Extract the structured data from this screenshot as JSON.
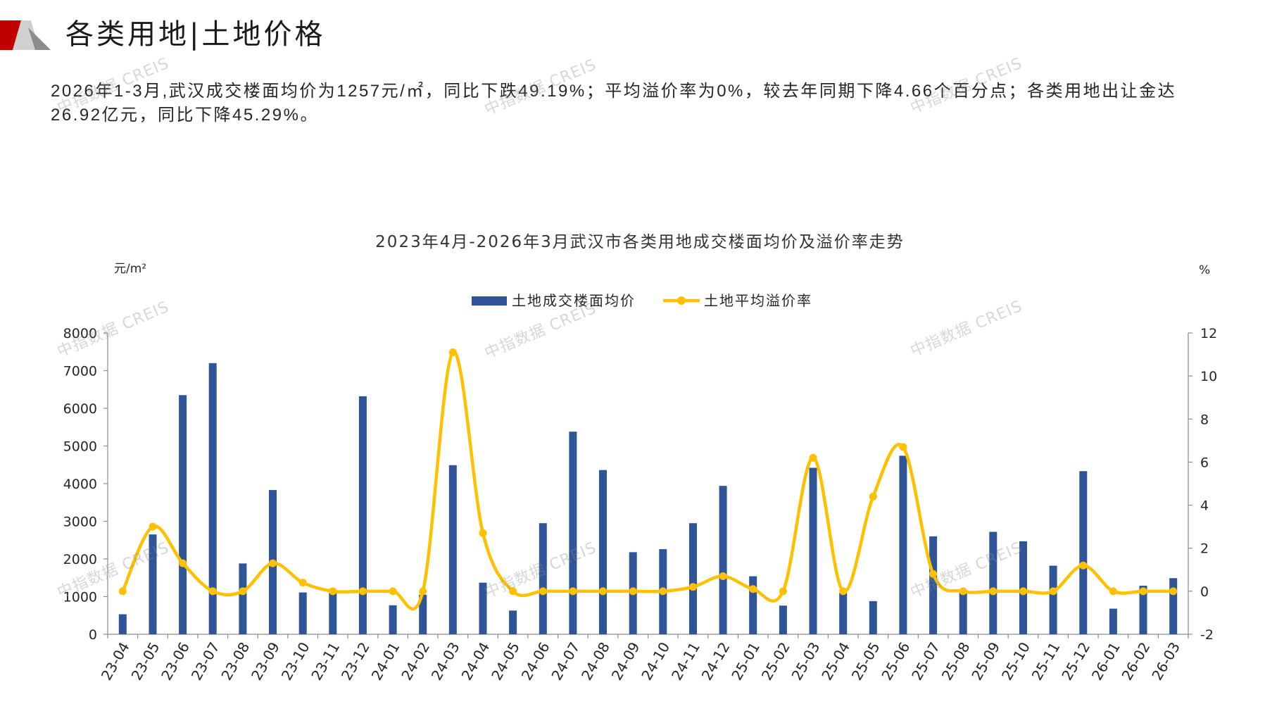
{
  "header": {
    "title": "各类用地|土地价格"
  },
  "summary": {
    "lines": [
      "2026年1-3月,武汉成交楼面均价为1257元/㎡，同比下跌49.19%；平均溢价率为0%，较去年同期下降4.66个百分点；各类用地出让金达",
      "26.92亿元，同比下降45.29%。"
    ]
  },
  "watermark": "中指数据 CREIS",
  "colors": {
    "bar": "#2F5597",
    "line": "#FFC000",
    "brand_red": "#C00000",
    "brand_gray_light": "#D0D0D0",
    "brand_gray_dark": "#8C8C8C",
    "axis": "#8C8C8C"
  },
  "chart_data": {
    "type": "bar",
    "title": "2023年4月-2026年3月武汉市各类用地成交楼面均价及溢价率走势",
    "ylabel": "元/m²",
    "ylabel_right": "%",
    "categories": [
      "23-04",
      "23-05",
      "23-06",
      "23-07",
      "23-08",
      "23-09",
      "23-10",
      "23-11",
      "23-12",
      "24-01",
      "24-02",
      "24-03",
      "24-04",
      "24-05",
      "24-06",
      "24-07",
      "24-08",
      "24-09",
      "24-10",
      "24-11",
      "24-12",
      "25-01",
      "25-02",
      "25-03",
      "25-04",
      "25-05",
      "25-06",
      "25-07",
      "25-08",
      "25-09",
      "25-10",
      "25-11",
      "25-12",
      "26-01",
      "26-02",
      "26-03"
    ],
    "series": [
      {
        "name": "土地成交楼面均价",
        "type": "bar",
        "axis": "left",
        "values": [
          530,
          2650,
          6350,
          7200,
          1880,
          3830,
          1110,
          1100,
          6320,
          770,
          1050,
          4490,
          1370,
          630,
          2950,
          5380,
          4360,
          2180,
          2260,
          2950,
          3940,
          1540,
          760,
          4420,
          1100,
          880,
          4740,
          2600,
          1110,
          2720,
          2470,
          1820,
          4330,
          680,
          1290,
          1490
        ]
      },
      {
        "name": "土地平均溢价率",
        "type": "line",
        "axis": "right",
        "values": [
          0,
          3.0,
          1.3,
          0,
          0,
          1.3,
          0.4,
          0,
          0,
          0,
          0,
          11.1,
          2.7,
          0,
          0,
          0,
          0,
          0,
          0,
          0.2,
          0.7,
          0.1,
          0,
          6.2,
          0,
          4.4,
          6.7,
          0.8,
          0,
          0,
          0,
          0,
          1.2,
          0,
          0,
          0
        ]
      }
    ],
    "ylim_left": [
      0,
      8000
    ],
    "yticks_left": [
      0,
      1000,
      2000,
      3000,
      4000,
      5000,
      6000,
      7000,
      8000
    ],
    "ylim_right": [
      -2,
      12
    ],
    "yticks_right": [
      -2,
      0,
      2,
      4,
      6,
      8,
      10,
      12
    ],
    "legend": "top-center",
    "grid": false
  }
}
